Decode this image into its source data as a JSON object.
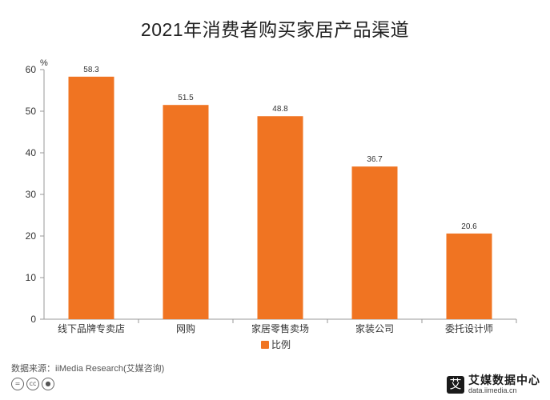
{
  "chart_data": {
    "type": "bar",
    "title": "2021年消费者购买家居产品渠道",
    "ylabel": "%",
    "xlabel": "",
    "ylim": [
      0,
      60
    ],
    "yticks": [
      0,
      10,
      20,
      30,
      40,
      50,
      60
    ],
    "categories": [
      "线下品牌专卖店",
      "网购",
      "家居零售卖场",
      "家装公司",
      "委托设计师"
    ],
    "series": [
      {
        "name": "比例",
        "values": [
          58.3,
          51.5,
          48.8,
          36.7,
          20.6
        ],
        "color": "#f07422"
      }
    ],
    "data_labels": [
      "58.3",
      "51.5",
      "48.8",
      "36.7",
      "20.6"
    ],
    "grid": false,
    "legend_position": "bottom"
  },
  "footer": {
    "source": "数据来源：iiMedia Research(艾媒咨询)",
    "license_icons": [
      "cc-equal-icon",
      "cc-icon",
      "cc-person-icon"
    ],
    "logo_mark": "艾",
    "logo_name": "艾媒数据中心",
    "logo_url": "data.iimedia.cn"
  }
}
